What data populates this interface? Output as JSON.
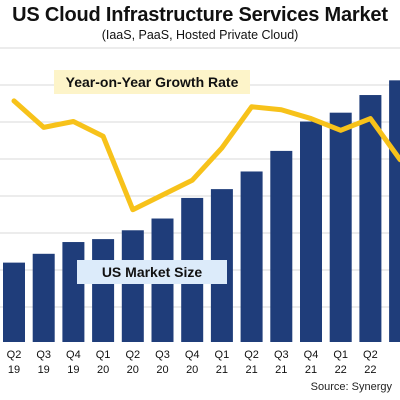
{
  "title": "US Cloud Infrastructure Services Market",
  "subtitle": "(IaaS, PaaS, Hosted Private Cloud)",
  "source": "Source: Synergy",
  "chart_data": {
    "type": "bar",
    "categories": [
      {
        "q": "Q2",
        "y": "19"
      },
      {
        "q": "Q3",
        "y": "19"
      },
      {
        "q": "Q4",
        "y": "19"
      },
      {
        "q": "Q1",
        "y": "20"
      },
      {
        "q": "Q2",
        "y": "20"
      },
      {
        "q": "Q3",
        "y": "20"
      },
      {
        "q": "Q4",
        "y": "20"
      },
      {
        "q": "Q1",
        "y": "21"
      },
      {
        "q": "Q2",
        "y": "21"
      },
      {
        "q": "Q3",
        "y": "21"
      },
      {
        "q": "Q4",
        "y": "21"
      },
      {
        "q": "Q1",
        "y": "22"
      },
      {
        "q": "Q2",
        "y": "22"
      },
      {
        "q": "",
        "y": ""
      }
    ],
    "series": [
      {
        "name": "US Market Size",
        "type": "bar",
        "values": [
          27,
          30,
          34,
          35,
          38,
          42,
          49,
          52,
          58,
          65,
          75,
          78,
          84,
          89
        ]
      },
      {
        "name": "Year-on-Year Growth Rate",
        "type": "line",
        "values": [
          82,
          73,
          75,
          70,
          45,
          50,
          55,
          66,
          80,
          79,
          76,
          72,
          76,
          62
        ]
      }
    ],
    "ylim": [
      0,
      100
    ],
    "grid": true,
    "colors": {
      "bar": "#1f3d7a",
      "line": "#f7c21a",
      "label_bg": "#fdf4c9",
      "market_label_bg": "#dcebfa",
      "grid": "#d9d9d9"
    }
  }
}
